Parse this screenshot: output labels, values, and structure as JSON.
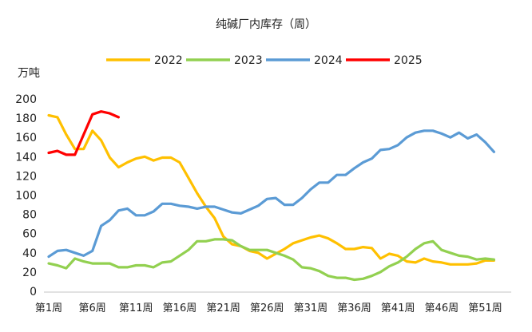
{
  "chart_data": {
    "type": "line",
    "title": "纯碱厂内库存（周）",
    "ylabel": "万吨",
    "xlabel": "",
    "ylim": [
      0,
      200
    ],
    "yticks": [
      0,
      20,
      40,
      60,
      80,
      100,
      120,
      140,
      160,
      180,
      200
    ],
    "x_tick_labels": [
      "第1周",
      "第6周",
      "第11周",
      "第16周",
      "第21周",
      "第26周",
      "第31周",
      "第36周",
      "第41周",
      "第46周",
      "第51周"
    ],
    "x_tick_weeks": [
      1,
      6,
      11,
      16,
      21,
      26,
      31,
      36,
      41,
      46,
      51
    ],
    "x_range_weeks": [
      1,
      52
    ],
    "grid": false,
    "legend_position": "top",
    "series": [
      {
        "name": "2022",
        "color": "#FFC000",
        "values": [
          183,
          181,
          163,
          148,
          148,
          167,
          157,
          139,
          129,
          134,
          138,
          140,
          136,
          139,
          139,
          134,
          118,
          102,
          88,
          76,
          57,
          49,
          47,
          42,
          40,
          34,
          39,
          44,
          50,
          53,
          56,
          58,
          55,
          50,
          44,
          44,
          46,
          45,
          34,
          39,
          37,
          31,
          30,
          34,
          31,
          30,
          28,
          28,
          28,
          29,
          32,
          32
        ]
      },
      {
        "name": "2023",
        "color": "#92D050",
        "values": [
          29,
          27,
          24,
          34,
          31,
          29,
          29,
          29,
          25,
          25,
          27,
          27,
          25,
          30,
          31,
          37,
          43,
          52,
          52,
          54,
          54,
          53,
          47,
          43,
          43,
          43,
          40,
          37,
          33,
          25,
          24,
          21,
          16,
          14,
          14,
          12,
          13,
          16,
          20,
          26,
          30,
          36,
          44,
          50,
          52,
          43,
          40,
          37,
          36,
          33,
          34,
          33
        ]
      },
      {
        "name": "2024",
        "color": "#5B9BD5",
        "values": [
          36,
          42,
          43,
          40,
          37,
          42,
          68,
          74,
          84,
          86,
          79,
          79,
          83,
          91,
          91,
          89,
          88,
          86,
          88,
          88,
          85,
          82,
          81,
          85,
          89,
          96,
          97,
          90,
          90,
          97,
          106,
          113,
          113,
          121,
          121,
          128,
          134,
          138,
          147,
          148,
          152,
          160,
          165,
          167,
          167,
          164,
          160,
          165,
          159,
          163,
          155,
          145
        ]
      },
      {
        "name": "2025",
        "color": "#FF0000",
        "values": [
          144,
          146,
          142,
          142,
          163,
          184,
          187,
          185,
          181
        ]
      }
    ]
  }
}
